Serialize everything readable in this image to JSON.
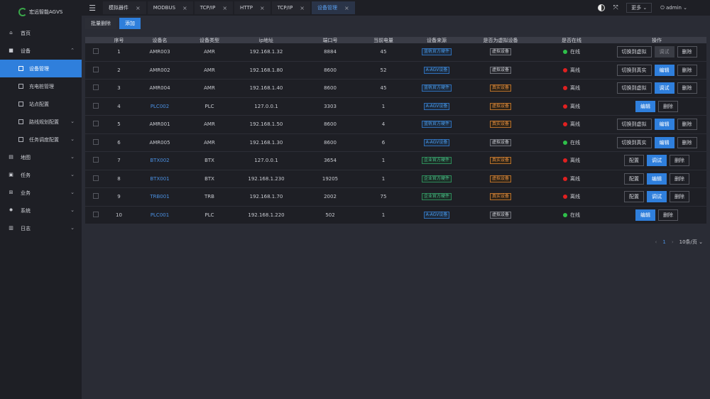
{
  "app": {
    "title": "宏远智能AGVS"
  },
  "colors": {
    "accent": "#2f7fdc",
    "online": "#2fbf4a",
    "offline": "#e02020"
  },
  "sidebar": {
    "home": "首页",
    "device": "设备",
    "sub": [
      "设备管理",
      "充电桩管理",
      "站点配置",
      "路线规划配置",
      "任务调度配置"
    ],
    "items": [
      "地图",
      "任务",
      "业务",
      "系统",
      "日志"
    ]
  },
  "tabs": [
    {
      "label": "模拟器件"
    },
    {
      "label": "MODBUS"
    },
    {
      "label": "TCP/IP"
    },
    {
      "label": "HTTP"
    },
    {
      "label": "TCP/IP"
    },
    {
      "label": "设备管理"
    }
  ],
  "topbar": {
    "more": "更多",
    "user": "admin"
  },
  "toolbar": {
    "batch_delete": "批量删除",
    "add": "添加"
  },
  "table": {
    "headers": [
      "序号",
      "设备名",
      "设备类型",
      "ip地址",
      "端口号",
      "当前电量",
      "设备来源",
      "是否为虚拟设备",
      "是否在线",
      "操作"
    ],
    "rows": [
      {
        "no": "1",
        "name": "AMR003",
        "type": "AMR",
        "ip": "192.168.1.32",
        "port": "8884",
        "battery": "45",
        "source": "蓝帆官方硬件",
        "source_color": "blue",
        "virtual": "虚拟设备",
        "virtual_color": "gray",
        "online": "在线",
        "ops": [
          "切换到虚拟",
          "调试",
          "删除"
        ],
        "ops_style": [
          "",
          "disabled",
          ""
        ]
      },
      {
        "no": "2",
        "name": "AMR002",
        "type": "AMR",
        "ip": "192.168.1.80",
        "port": "8600",
        "battery": "52",
        "source": "A-AGV设备",
        "source_color": "blue",
        "virtual": "虚拟设备",
        "virtual_color": "gray",
        "online": "离线",
        "ops": [
          "切换到真实",
          "编辑",
          "删除"
        ],
        "ops_style": [
          "",
          "blue",
          ""
        ]
      },
      {
        "no": "3",
        "name": "AMR004",
        "type": "AMR",
        "ip": "192.168.1.40",
        "port": "8600",
        "battery": "45",
        "source": "蓝帆官方硬件",
        "source_color": "blue",
        "virtual": "真实设备",
        "virtual_color": "orange",
        "online": "离线",
        "ops": [
          "切换到虚拟",
          "调试",
          "删除"
        ],
        "ops_style": [
          "",
          "blue",
          ""
        ]
      },
      {
        "no": "4",
        "name": "PLC002",
        "type": "PLC",
        "ip": "127.0.0.1",
        "port": "3303",
        "battery": "1",
        "source": "A-AGV设备",
        "source_color": "blue",
        "virtual": "虚拟设备",
        "virtual_color": "orange",
        "online": "离线",
        "ops": [
          "编辑",
          "删除"
        ],
        "ops_style": [
          "blue",
          ""
        ]
      },
      {
        "no": "5",
        "name": "AMR001",
        "type": "AMR",
        "ip": "192.168.1.50",
        "port": "8600",
        "battery": "4",
        "source": "蓝帆官方硬件",
        "source_color": "blue",
        "virtual": "真实设备",
        "virtual_color": "orange",
        "online": "离线",
        "ops": [
          "切换到虚拟",
          "编辑",
          "删除"
        ],
        "ops_style": [
          "",
          "blue",
          ""
        ]
      },
      {
        "no": "6",
        "name": "AMR005",
        "type": "AMR",
        "ip": "192.168.1.30",
        "port": "8600",
        "battery": "6",
        "source": "A-AGV设备",
        "source_color": "blue",
        "virtual": "虚拟设备",
        "virtual_color": "gray",
        "online": "在线",
        "ops": [
          "切换到真实",
          "编辑",
          "删除"
        ],
        "ops_style": [
          "",
          "blue",
          ""
        ]
      },
      {
        "no": "7",
        "name": "BTX002",
        "type": "BTX",
        "ip": "127.0.0.1",
        "port": "3654",
        "battery": "1",
        "source": "企业官方硬件",
        "source_color": "green",
        "virtual": "真实设备",
        "virtual_color": "orange",
        "online": "离线",
        "ops": [
          "配置",
          "调试",
          "删除"
        ],
        "ops_style": [
          "",
          "blue",
          ""
        ]
      },
      {
        "no": "8",
        "name": "BTX001",
        "type": "BTX",
        "ip": "192.168.1.230",
        "port": "19205",
        "battery": "1",
        "source": "企业官方硬件",
        "source_color": "green",
        "virtual": "虚拟设备",
        "virtual_color": "orange",
        "online": "离线",
        "ops": [
          "配置",
          "编辑",
          "删除"
        ],
        "ops_style": [
          "",
          "blue",
          ""
        ]
      },
      {
        "no": "9",
        "name": "TRB001",
        "type": "TRB",
        "ip": "192.168.1.70",
        "port": "2002",
        "battery": "75",
        "source": "企业官方硬件",
        "source_color": "green",
        "virtual": "真实设备",
        "virtual_color": "orange",
        "online": "离线",
        "ops": [
          "配置",
          "调试",
          "删除"
        ],
        "ops_style": [
          "",
          "blue",
          ""
        ]
      },
      {
        "no": "10",
        "name": "PLC001",
        "type": "PLC",
        "ip": "192.168.1.220",
        "port": "502",
        "battery": "1",
        "source": "A-AGV设备",
        "source_color": "blue",
        "virtual": "虚拟设备",
        "virtual_color": "gray",
        "online": "在线",
        "ops": [
          "编辑",
          "删除"
        ],
        "ops_style": [
          "blue",
          ""
        ]
      }
    ]
  },
  "pager": {
    "page": "1",
    "size": "10条/页"
  }
}
